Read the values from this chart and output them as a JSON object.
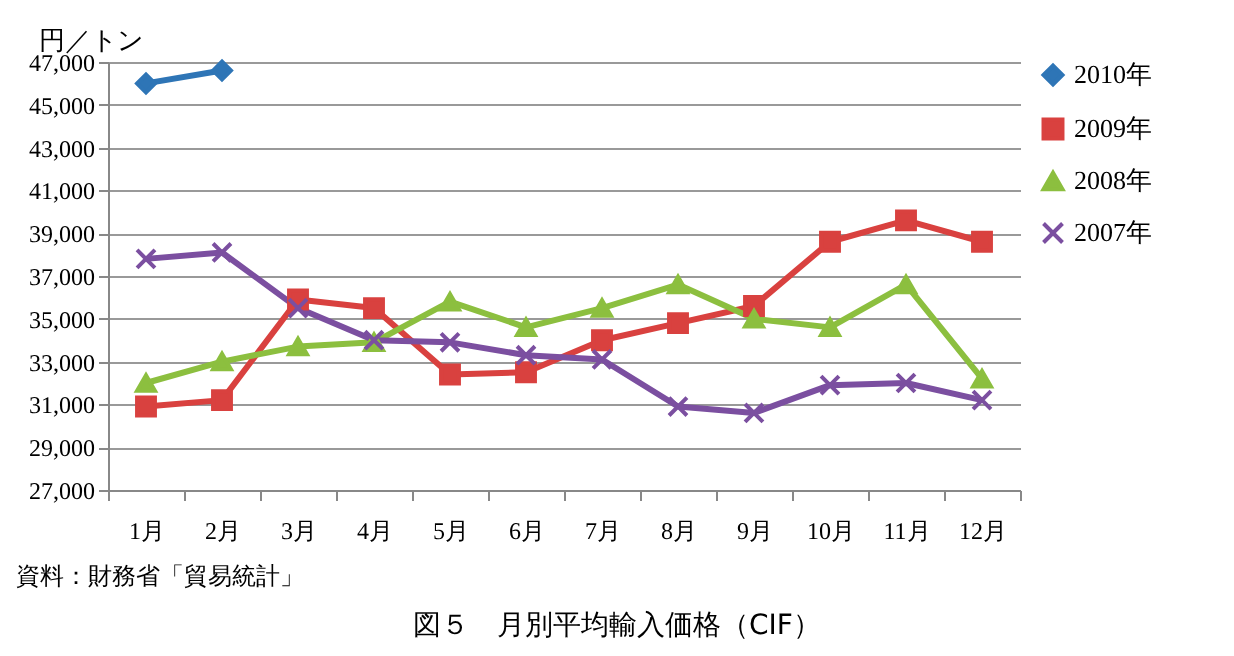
{
  "chart_data": {
    "type": "line",
    "title": "図５　月別平均輸入価格（CIF）",
    "ylabel": "円／トン",
    "annotations": [
      "資料：財務省「貿易統計」"
    ],
    "categories": [
      "1月",
      "2月",
      "3月",
      "4月",
      "5月",
      "6月",
      "7月",
      "8月",
      "9月",
      "10月",
      "11月",
      "12月"
    ],
    "ylim": [
      27000,
      47000
    ],
    "yticks": [
      {
        "value": 27000,
        "label": "27,000"
      },
      {
        "value": 29000,
        "label": "29,000"
      },
      {
        "value": 31000,
        "label": "31,000"
      },
      {
        "value": 33000,
        "label": "33,000"
      },
      {
        "value": 35000,
        "label": "35,000"
      },
      {
        "value": 37000,
        "label": "37,000"
      },
      {
        "value": 39000,
        "label": "39,000"
      },
      {
        "value": 41000,
        "label": "41,000"
      },
      {
        "value": 43000,
        "label": "43,000"
      },
      {
        "value": 45000,
        "label": "45,000"
      },
      {
        "value": 47000,
        "label": "47,000"
      }
    ],
    "grid": "y",
    "legend": "right",
    "line_style": "solid",
    "series": [
      {
        "name": "2010年",
        "color": "#2e75b6",
        "marker": "diamond",
        "values": [
          46000,
          46600,
          null,
          null,
          null,
          null,
          null,
          null,
          null,
          null,
          null,
          null
        ]
      },
      {
        "name": "2009年",
        "color": "#d9413f",
        "marker": "square",
        "values": [
          30900,
          31200,
          35900,
          35500,
          32400,
          32500,
          34000,
          34800,
          35600,
          38600,
          39600,
          38600
        ]
      },
      {
        "name": "2008年",
        "color": "#8cbf3f",
        "marker": "triangle",
        "values": [
          32000,
          33000,
          33700,
          33900,
          35800,
          34600,
          35500,
          36600,
          35000,
          34600,
          36600,
          32200
        ]
      },
      {
        "name": "2007年",
        "color": "#7b4fa0",
        "marker": "cross",
        "values": [
          37800,
          38100,
          35500,
          34000,
          33900,
          33300,
          33100,
          30900,
          30600,
          31900,
          32000,
          31200
        ]
      }
    ]
  }
}
